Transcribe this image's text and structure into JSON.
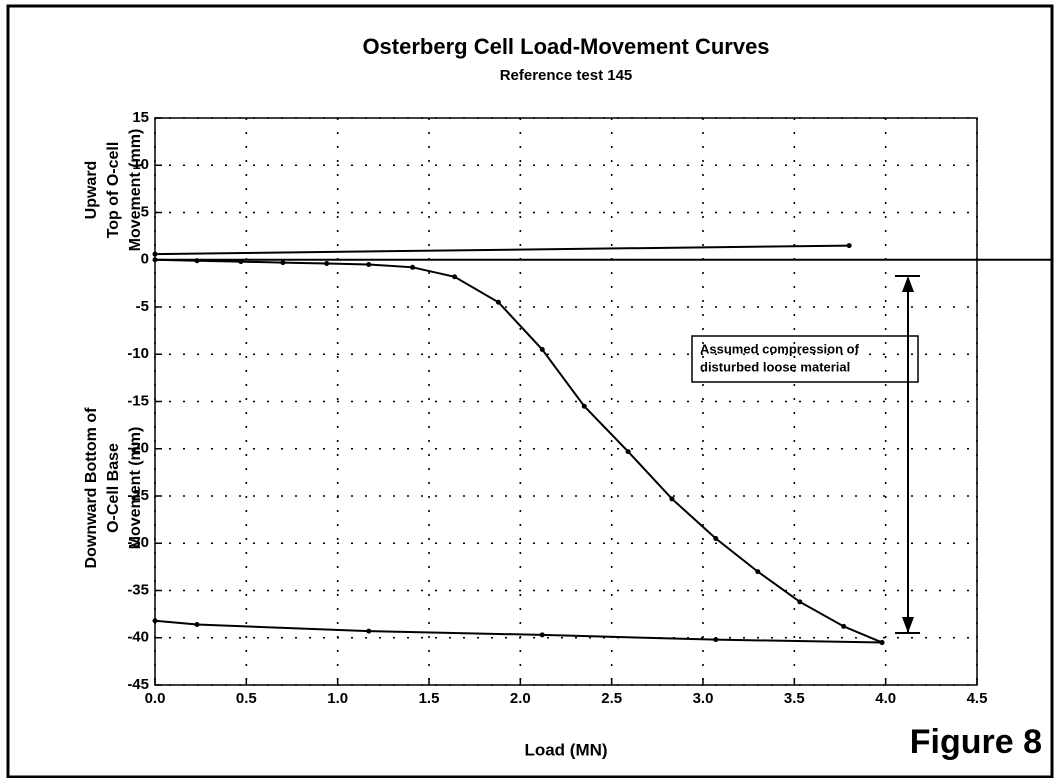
{
  "chart_data": {
    "type": "line",
    "title": "Osterberg Cell Load-Movement Curves",
    "subtitle": "Reference test 145",
    "xlabel": "Load (MN)",
    "ylabel_upper": [
      "Upward",
      "Top of O-cell",
      "Movement (mm)"
    ],
    "ylabel_lower": [
      "Downward Bottom of",
      "O-Cell Base",
      "Movement (mm)"
    ],
    "annotation": [
      "Assumed compression of",
      "disturbed loose material"
    ],
    "figure_label": "Figure 8",
    "xlim": [
      0,
      4.5
    ],
    "ylim": [
      -45,
      15
    ],
    "xticks": [
      {
        "value": 0,
        "label": "0.0"
      },
      0.5,
      {
        "value": 1,
        "label": "1.0"
      },
      1.5,
      {
        "value": 2,
        "label": "2.0"
      },
      2.5,
      {
        "value": 3,
        "label": "3.0"
      },
      3.5,
      {
        "value": 4,
        "label": "4.0"
      },
      4.5
    ],
    "yticks": [
      15,
      10,
      5,
      0,
      -5,
      -10,
      -15,
      -20,
      -25,
      -30,
      -35,
      -40,
      -45
    ],
    "grid": true,
    "series": [
      {
        "color": "#000000",
        "x": [
          0,
          3.8
        ],
        "values": [
          0.6,
          1.5
        ]
      },
      {
        "color": "#000000",
        "x": [
          0,
          0.23,
          0.47,
          0.7,
          0.94,
          1.17,
          1.41,
          1.64,
          1.88,
          2.12,
          2.35,
          2.59,
          2.83,
          3.07,
          3.3,
          3.53,
          3.77,
          3.98
        ],
        "values": [
          0,
          -0.1,
          -0.2,
          -0.3,
          -0.4,
          -0.5,
          -0.8,
          -1.8,
          -4.5,
          -9.5,
          -15.5,
          -20.3,
          -25.3,
          -29.5,
          -33,
          -36.2,
          -38.8,
          -40.5
        ]
      },
      {
        "color": "#000000",
        "x": [
          3.98,
          3.07,
          2.12,
          1.17,
          0.23,
          0
        ],
        "values": [
          -40.5,
          -40.2,
          -39.7,
          -39.3,
          -38.6,
          -38.2
        ]
      }
    ]
  }
}
